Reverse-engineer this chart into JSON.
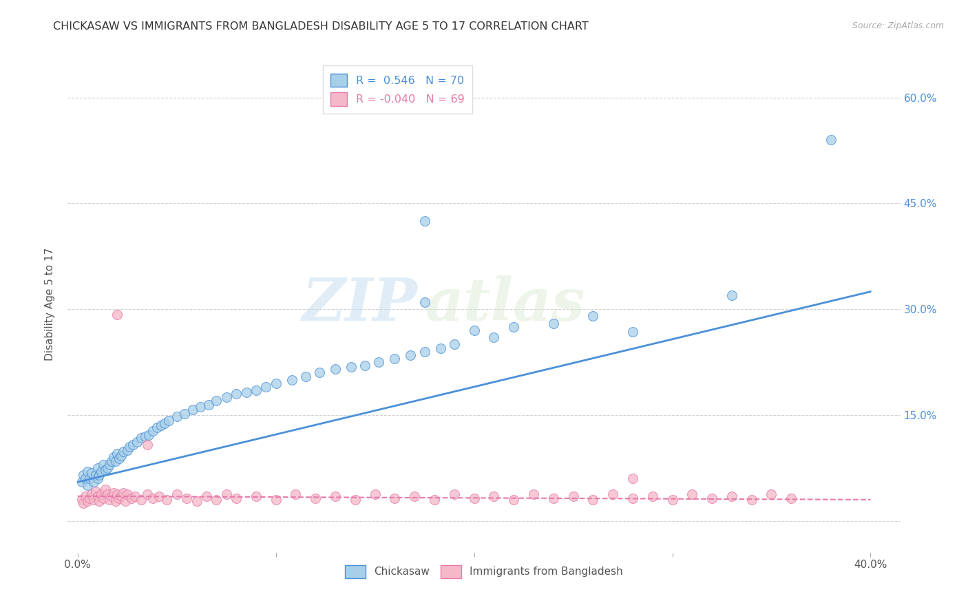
{
  "title": "CHICKASAW VS IMMIGRANTS FROM BANGLADESH DISABILITY AGE 5 TO 17 CORRELATION CHART",
  "source": "Source: ZipAtlas.com",
  "xlabel_ticks": [
    "0.0%",
    "",
    "",
    "",
    "40.0%"
  ],
  "xlabel_tick_vals": [
    0.0,
    0.1,
    0.2,
    0.3,
    0.4
  ],
  "ylabel": "Disability Age 5 to 17",
  "ylabel_ticks": [
    "60.0%",
    "45.0%",
    "30.0%",
    "15.0%",
    ""
  ],
  "ylabel_tick_vals": [
    0.6,
    0.45,
    0.3,
    0.15,
    0.0
  ],
  "xlim": [
    -0.005,
    0.415
  ],
  "ylim": [
    -0.045,
    0.66
  ],
  "legend_R1": "R =  0.546",
  "legend_N1": "N = 70",
  "legend_R2": "R = -0.040",
  "legend_N2": "N = 69",
  "color_blue": "#a8cfe8",
  "color_pink": "#f4b8c8",
  "color_blue_line": "#4a90d9",
  "color_pink_line": "#e87aaa",
  "color_pink_dashed": "#e87aaa",
  "color_grid": "#cccccc",
  "watermark_zip": "ZIP",
  "watermark_atlas": "atlas",
  "blue_x": [
    0.002,
    0.003,
    0.004,
    0.005,
    0.005,
    0.006,
    0.007,
    0.008,
    0.009,
    0.01,
    0.01,
    0.011,
    0.012,
    0.013,
    0.014,
    0.015,
    0.016,
    0.017,
    0.018,
    0.019,
    0.02,
    0.021,
    0.022,
    0.023,
    0.025,
    0.026,
    0.028,
    0.03,
    0.032,
    0.034,
    0.036,
    0.038,
    0.04,
    0.042,
    0.044,
    0.046,
    0.05,
    0.054,
    0.058,
    0.062,
    0.066,
    0.07,
    0.075,
    0.08,
    0.085,
    0.09,
    0.095,
    0.1,
    0.108,
    0.115,
    0.122,
    0.13,
    0.138,
    0.145,
    0.152,
    0.16,
    0.168,
    0.175,
    0.183,
    0.19,
    0.2,
    0.21,
    0.22,
    0.175,
    0.24,
    0.26,
    0.28,
    0.175,
    0.33,
    0.38
  ],
  "blue_y": [
    0.055,
    0.065,
    0.06,
    0.07,
    0.05,
    0.06,
    0.068,
    0.055,
    0.065,
    0.06,
    0.075,
    0.065,
    0.07,
    0.08,
    0.072,
    0.075,
    0.08,
    0.085,
    0.09,
    0.085,
    0.095,
    0.088,
    0.092,
    0.098,
    0.1,
    0.105,
    0.108,
    0.112,
    0.118,
    0.12,
    0.122,
    0.128,
    0.132,
    0.135,
    0.138,
    0.142,
    0.148,
    0.152,
    0.158,
    0.162,
    0.165,
    0.17,
    0.175,
    0.18,
    0.182,
    0.185,
    0.19,
    0.195,
    0.2,
    0.205,
    0.21,
    0.215,
    0.218,
    0.22,
    0.225,
    0.23,
    0.235,
    0.24,
    0.245,
    0.25,
    0.27,
    0.26,
    0.275,
    0.31,
    0.28,
    0.29,
    0.268,
    0.425,
    0.32,
    0.54
  ],
  "pink_x": [
    0.002,
    0.003,
    0.004,
    0.005,
    0.006,
    0.007,
    0.008,
    0.009,
    0.01,
    0.011,
    0.012,
    0.013,
    0.014,
    0.015,
    0.016,
    0.017,
    0.018,
    0.019,
    0.02,
    0.021,
    0.022,
    0.023,
    0.024,
    0.025,
    0.027,
    0.029,
    0.032,
    0.035,
    0.038,
    0.041,
    0.045,
    0.05,
    0.055,
    0.06,
    0.065,
    0.07,
    0.075,
    0.08,
    0.09,
    0.1,
    0.11,
    0.12,
    0.13,
    0.14,
    0.15,
    0.16,
    0.17,
    0.18,
    0.19,
    0.2,
    0.21,
    0.22,
    0.23,
    0.24,
    0.25,
    0.26,
    0.27,
    0.28,
    0.29,
    0.3,
    0.31,
    0.32,
    0.33,
    0.34,
    0.35,
    0.36,
    0.02,
    0.035,
    0.28
  ],
  "pink_y": [
    0.03,
    0.025,
    0.035,
    0.028,
    0.032,
    0.038,
    0.03,
    0.042,
    0.035,
    0.028,
    0.038,
    0.032,
    0.045,
    0.038,
    0.03,
    0.035,
    0.04,
    0.028,
    0.038,
    0.032,
    0.035,
    0.04,
    0.028,
    0.038,
    0.032,
    0.035,
    0.03,
    0.038,
    0.032,
    0.035,
    0.03,
    0.038,
    0.032,
    0.028,
    0.035,
    0.03,
    0.038,
    0.032,
    0.035,
    0.03,
    0.038,
    0.032,
    0.035,
    0.03,
    0.038,
    0.032,
    0.035,
    0.03,
    0.038,
    0.032,
    0.035,
    0.03,
    0.038,
    0.032,
    0.035,
    0.03,
    0.038,
    0.032,
    0.035,
    0.03,
    0.038,
    0.032,
    0.035,
    0.03,
    0.038,
    0.032,
    0.292,
    0.108,
    0.06
  ],
  "blue_line_x": [
    0.0,
    0.4
  ],
  "blue_line_y": [
    0.055,
    0.325
  ],
  "pink_line_x": [
    0.0,
    0.4
  ],
  "pink_line_y": [
    0.035,
    0.03
  ]
}
